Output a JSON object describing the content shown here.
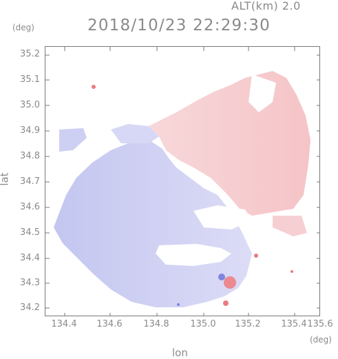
{
  "header": {
    "altitude_label": "ALT(km) 2.0",
    "datetime": "2018/10/23 22:29:30"
  },
  "axes": {
    "y_unit": "(deg)",
    "x_unit": "(deg)",
    "x_title": "lon",
    "y_title": "lat",
    "y_ticks": [
      "35.2",
      "35.1",
      "35.0",
      "34.9",
      "34.8",
      "34.7",
      "34.6",
      "34.5",
      "34.4",
      "34.3",
      "34.2"
    ],
    "x_ticks": [
      "134.4",
      "134.6",
      "134.8",
      "135.0",
      "135.2",
      "135.4",
      "135.6"
    ]
  },
  "map": {
    "lon_range": [
      134.3,
      135.6
    ],
    "lat_range": [
      34.16,
      35.27
    ],
    "colors": {
      "approaching": "#c7c9f2",
      "approaching_strong": "#7f84e0",
      "receding": "#f6c9cb",
      "receding_strong": "#e97b82",
      "frame": "#777777"
    }
  }
}
